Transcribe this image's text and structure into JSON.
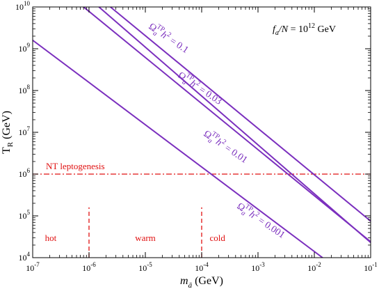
{
  "chart_data": {
    "type": "line",
    "title": "",
    "xlabel": "m_ã (GeV)",
    "ylabel": "T_R (GeV)",
    "x_scale": "log",
    "y_scale": "log",
    "xlim": [
      1e-07,
      0.1
    ],
    "ylim": [
      10000,
      10000000000
    ],
    "x_ticks": [
      {
        "value": 1e-07,
        "base": "10",
        "exp": "-7"
      },
      {
        "value": 1e-06,
        "base": "10",
        "exp": "-6"
      },
      {
        "value": 1e-05,
        "base": "10",
        "exp": "-5"
      },
      {
        "value": 0.0001,
        "base": "10",
        "exp": "-4"
      },
      {
        "value": 0.001,
        "base": "10",
        "exp": "-3"
      },
      {
        "value": 0.01,
        "base": "10",
        "exp": "-2"
      },
      {
        "value": 0.1,
        "base": "10",
        "exp": "-1"
      }
    ],
    "y_ticks": [
      {
        "value": 10000,
        "base": "10",
        "exp": "4"
      },
      {
        "value": 100000,
        "base": "10",
        "exp": "5"
      },
      {
        "value": 1000000,
        "base": "10",
        "exp": "6"
      },
      {
        "value": 10000000,
        "base": "10",
        "exp": "7"
      },
      {
        "value": 100000000,
        "base": "10",
        "exp": "8"
      },
      {
        "value": 1000000000,
        "base": "10",
        "exp": "9"
      },
      {
        "value": 10000000000,
        "base": "10",
        "exp": "10"
      }
    ],
    "parameter_label": {
      "text": "f_a/N = 10^12 GeV"
    },
    "series": [
      {
        "label_value": "0.1",
        "color": "#7b2fbe",
        "x": [
          2.4e-06,
          0.1
        ],
        "y": [
          10000000000.0,
          75000.0
        ]
      },
      {
        "label_value": "0.03",
        "color": "#7b2fbe",
        "x": [
          8e-07,
          0.1
        ],
        "y": [
          10000000000.0,
          24000.0
        ]
      },
      {
        "label_value": "0.01",
        "color": "#7b2fbe",
        "x": [
          1.5e-06,
          0.1
        ],
        "y": [
          10000000000.0,
          23000.0
        ]
      },
      {
        "label_value": "0.001",
        "color": "#7b2fbe",
        "x": [
          1e-07,
          0.014
        ],
        "y": [
          1600000000.0,
          10000.0
        ]
      }
    ],
    "curve_label_prefix": "Ω",
    "curve_label_sub": "a",
    "curve_label_sup": "TP",
    "curve_label_h": "h",
    "curve_label_h_exp": "2",
    "curve_label_eq": " = ",
    "hline": {
      "y": 1000000,
      "label": "NT leptogenesis",
      "color": "#e01010",
      "style": "dash-dot"
    },
    "vlines": [
      {
        "x": 1e-06,
        "color": "#e01010"
      },
      {
        "x": 0.0001,
        "color": "#e01010"
      }
    ],
    "regions": [
      {
        "label": "hot",
        "color": "#e01010"
      },
      {
        "label": "warm",
        "color": "#e01010"
      },
      {
        "label": "cold",
        "color": "#e01010"
      }
    ],
    "grid": false,
    "legend": "none"
  }
}
